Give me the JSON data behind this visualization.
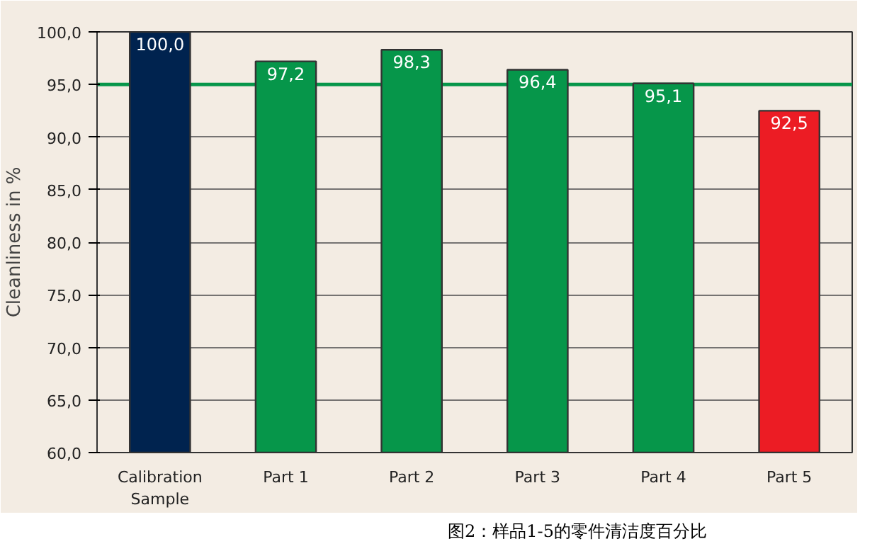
{
  "chart_data": {
    "type": "bar",
    "ylabel": "Cleanliness in %",
    "categories": [
      "Calibration Sample",
      "Part 1",
      "Part 2",
      "Part 3",
      "Part 4",
      "Part 5"
    ],
    "values": [
      100.0,
      97.2,
      98.3,
      96.4,
      95.1,
      92.5
    ],
    "colors": [
      "#00234f",
      "#06964a",
      "#06964a",
      "#06964a",
      "#06964a",
      "#ec1c24"
    ],
    "value_labels": [
      "100,0",
      "97,2",
      "98,3",
      "96,4",
      "95,1",
      "92,5"
    ],
    "ylim": [
      60,
      100
    ],
    "yticks": [
      {
        "value": 60,
        "label": "60,0"
      },
      {
        "value": 65,
        "label": "65,0"
      },
      {
        "value": 70,
        "label": "70,0"
      },
      {
        "value": 75,
        "label": "75,0"
      },
      {
        "value": 80,
        "label": "80,0"
      },
      {
        "value": 85,
        "label": "85,0"
      },
      {
        "value": 90,
        "label": "90,0"
      },
      {
        "value": 95,
        "label": "95,0"
      },
      {
        "value": 100,
        "label": "100,0"
      }
    ],
    "ref_lines": [
      {
        "axis": "y",
        "value": 95,
        "color": "#06964a"
      }
    ],
    "grid": "y",
    "annotations": [
      "图2：样品1-5的零件清洁度百分比"
    ]
  }
}
